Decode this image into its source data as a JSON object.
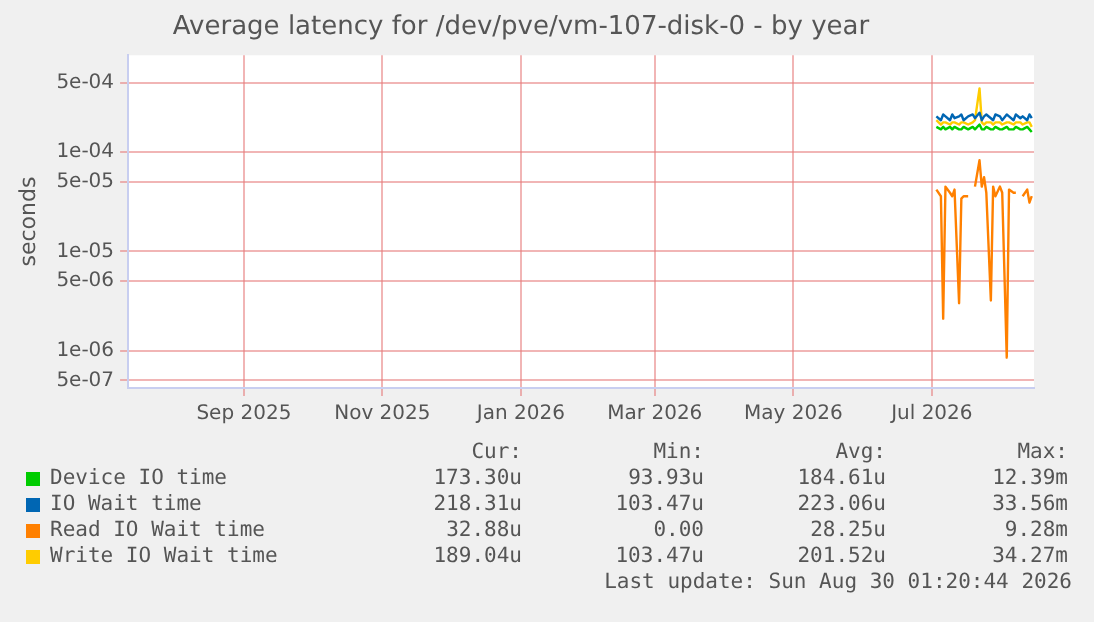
{
  "chart_data": {
    "type": "line",
    "title": "Average latency for /dev/pve/vm-107-disk-0 - by year",
    "ylabel": "seconds",
    "x": [
      "2026-07-18",
      "2026-07-20",
      "2026-07-21",
      "2026-07-22",
      "2026-07-24",
      "2026-07-25",
      "2026-07-26",
      "2026-07-28",
      "2026-07-29",
      "2026-07-30",
      "2026-08-01",
      "2026-08-03",
      "2026-08-04",
      "2026-08-06",
      "2026-08-07",
      "2026-08-08",
      "2026-08-09",
      "2026-08-11",
      "2026-08-12",
      "2026-08-13",
      "2026-08-15",
      "2026-08-16",
      "2026-08-18",
      "2026-08-19",
      "2026-08-21",
      "2026-08-22",
      "2026-08-24",
      "2026-08-25",
      "2026-08-27",
      "2026-08-28",
      "2026-08-29"
    ],
    "series": [
      {
        "name": "Device IO time",
        "color": "#00cc00",
        "values": [
          0.00018,
          0.00017,
          0.00018,
          0.00017,
          0.00018,
          0.00017,
          0.00018,
          0.00017,
          0.00017,
          0.00018,
          0.00017,
          0.00018,
          0.00017,
          0.00019,
          0.00017,
          0.00017,
          0.00018,
          0.00017,
          0.00017,
          0.00018,
          0.00017,
          0.00017,
          0.00018,
          0.00017,
          0.00017,
          0.00018,
          0.00017,
          0.00017,
          0.00018,
          0.00017,
          0.00016
        ]
      },
      {
        "name": "IO Wait time",
        "color": "#0066b3",
        "values": [
          0.00023,
          0.00021,
          0.00024,
          0.00023,
          0.00021,
          0.00024,
          0.00022,
          0.00023,
          0.00024,
          0.00021,
          0.00023,
          0.00024,
          0.00022,
          0.00025,
          0.00021,
          0.00023,
          0.00024,
          0.00022,
          0.00021,
          0.00024,
          0.00023,
          0.00021,
          0.00024,
          0.00023,
          0.00021,
          0.00024,
          0.00022,
          0.00023,
          0.00021,
          0.00024,
          0.00022
        ]
      },
      {
        "name": "Read IO Wait time",
        "color": "#ff8000",
        "values": [
          4.2e-05,
          3.6e-05,
          2.1e-06,
          4.5e-05,
          3.9e-05,
          3.6e-05,
          4.2e-05,
          3e-06,
          3.4e-05,
          3.6e-05,
          3.6e-05,
          null,
          4.5e-05,
          8.3e-05,
          4.5e-05,
          5.6e-05,
          3.9e-05,
          3.2e-06,
          4.5e-05,
          3.6e-05,
          4.5e-05,
          3.9e-05,
          8.5e-07,
          4.2e-05,
          3.9e-05,
          3.9e-05,
          null,
          3.6e-05,
          4.2e-05,
          3.1e-05,
          3.6e-05
        ]
      },
      {
        "name": "Write IO Wait time",
        "color": "#ffcc00",
        "values": [
          0.00021,
          0.00019,
          0.0002,
          0.0002,
          0.00019,
          0.0002,
          0.0002,
          0.00019,
          0.0002,
          0.0002,
          0.00019,
          0.0002,
          0.00021,
          0.00044,
          0.0002,
          0.00019,
          0.0002,
          0.0002,
          0.00019,
          0.0002,
          0.0002,
          0.00019,
          0.0002,
          0.0002,
          0.00019,
          0.0002,
          0.0002,
          0.00019,
          0.0002,
          0.0002,
          0.00018
        ]
      }
    ],
    "log": true,
    "grid": true,
    "legend": "bottom",
    "marker": "none",
    "line_style": "solid",
    "xlim": [
      "2025-07-27",
      "2026-08-30"
    ],
    "xticks": [
      {
        "value": "2025-09-16",
        "label": "Sep 2025"
      },
      {
        "value": "2025-11-16",
        "label": "Nov 2025"
      },
      {
        "value": "2026-01-16",
        "label": "Jan 2026"
      },
      {
        "value": "2026-03-16",
        "label": "Mar 2026"
      },
      {
        "value": "2026-05-16",
        "label": "May 2026"
      },
      {
        "value": "2026-07-16",
        "label": "Jul 2026"
      }
    ],
    "ylim": [
      4.2e-07,
      0.00095
    ],
    "yticks": [
      {
        "value": 5e-07,
        "label": "5e-07"
      },
      {
        "value": 1e-06,
        "label": "1e-06"
      },
      {
        "value": 5e-06,
        "label": "5e-06"
      },
      {
        "value": 1e-05,
        "label": "1e-05"
      },
      {
        "value": 5e-05,
        "label": "5e-05"
      },
      {
        "value": 0.0001,
        "label": "1e-04"
      },
      {
        "value": 0.0005,
        "label": "5e-04"
      }
    ],
    "annotations": [
      "Cur:",
      "Min:",
      "Avg:",
      "Max:",
      "173.30u",
      "93.93u",
      "184.61u",
      "12.39m",
      "218.31u",
      "103.47u",
      "223.06u",
      "33.56m",
      "32.88u",
      "0.00",
      "28.25u",
      "9.28m",
      "189.04u",
      "103.47u",
      "201.52u",
      "34.27m",
      "Last update: Sun Aug 30 01:20:44 2026"
    ]
  }
}
